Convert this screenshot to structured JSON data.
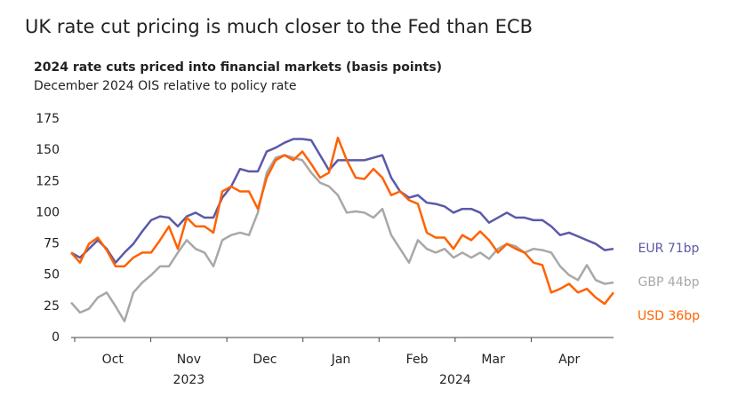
{
  "chart_data": {
    "type": "line",
    "title": "UK rate cut pricing is much closer to the Fed than ECB",
    "subtitle": "2024 rate cuts priced into financial markets (basis points)",
    "note": "December 2024 OIS relative to policy rate",
    "months": [
      "Oct",
      "Nov",
      "Dec",
      "Jan",
      "Feb",
      "Mar",
      "Apr"
    ],
    "years": [
      {
        "label": "2023",
        "months": [
          "Oct",
          "Nov",
          "Dec"
        ]
      },
      {
        "label": "2024",
        "months": [
          "Jan",
          "Feb",
          "Mar",
          "Apr"
        ]
      }
    ],
    "ylim": [
      0,
      175
    ],
    "yticks": [
      0,
      25,
      50,
      75,
      100,
      125,
      150,
      175
    ],
    "grid": false,
    "series": [
      {
        "name": "EUR 71bp",
        "color": "#5b59a8",
        "values": [
          68,
          64,
          71,
          78,
          71,
          60,
          68,
          75,
          85,
          94,
          97,
          96,
          89,
          97,
          100,
          96,
          96,
          112,
          121,
          135,
          133,
          133,
          149,
          152,
          156,
          159,
          159,
          158,
          146,
          134,
          142,
          142,
          142,
          142,
          144,
          146,
          128,
          117,
          112,
          114,
          108,
          107,
          105,
          100,
          103,
          103,
          100,
          92,
          96,
          100,
          96,
          96,
          94,
          94,
          89,
          82,
          84,
          81,
          78,
          75,
          70,
          71
        ]
      },
      {
        "name": "GBP 44bp",
        "color": "#a8a8a8",
        "values": [
          28,
          20,
          23,
          32,
          36,
          25,
          13,
          36,
          44,
          50,
          57,
          57,
          68,
          78,
          71,
          68,
          57,
          78,
          82,
          84,
          82,
          100,
          132,
          144,
          146,
          144,
          142,
          132,
          124,
          121,
          114,
          100,
          101,
          100,
          96,
          103,
          82,
          71,
          60,
          78,
          71,
          68,
          71,
          64,
          68,
          64,
          68,
          63,
          71,
          75,
          73,
          68,
          71,
          70,
          68,
          57,
          50,
          46,
          58,
          46,
          43,
          44
        ]
      },
      {
        "name": "USD 36bp",
        "color": "#ff6200",
        "values": [
          68,
          60,
          75,
          80,
          70,
          57,
          57,
          64,
          68,
          68,
          78,
          89,
          71,
          96,
          89,
          89,
          84,
          117,
          121,
          117,
          117,
          103,
          128,
          142,
          146,
          142,
          149,
          139,
          128,
          132,
          160,
          142,
          128,
          127,
          135,
          128,
          114,
          117,
          110,
          107,
          84,
          80,
          80,
          71,
          82,
          78,
          85,
          78,
          68,
          75,
          71,
          68,
          60,
          58,
          36,
          39,
          43,
          36,
          39,
          32,
          27,
          36
        ]
      }
    ]
  }
}
